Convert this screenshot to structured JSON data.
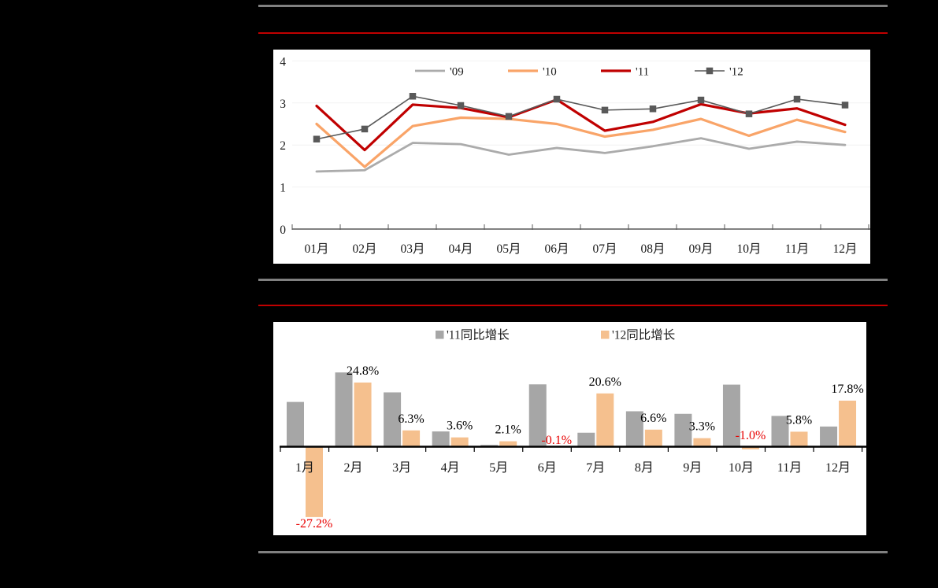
{
  "page": {
    "background": "#000000",
    "divider_gray_color": "#808080",
    "divider_red_color": "#C00000",
    "panel_background": "#FFFFFF",
    "axis_text_color": "#1A1A1A"
  },
  "chart_data": [
    {
      "type": "line",
      "title": "",
      "categories": [
        "01月",
        "02月",
        "03月",
        "04月",
        "05月",
        "06月",
        "07月",
        "08月",
        "09月",
        "10月",
        "11月",
        "12月"
      ],
      "series": [
        {
          "name": "'09",
          "color": "#ABABAB",
          "marker": "none",
          "values": [
            1.37,
            1.4,
            2.05,
            2.02,
            1.77,
            1.93,
            1.81,
            1.97,
            2.16,
            1.91,
            2.08,
            2.0
          ]
        },
        {
          "name": "'10",
          "color": "#F9A468",
          "marker": "none",
          "values": [
            2.5,
            1.48,
            2.45,
            2.65,
            2.62,
            2.5,
            2.2,
            2.36,
            2.62,
            2.22,
            2.6,
            2.31
          ]
        },
        {
          "name": "'11",
          "color": "#C00000",
          "marker": "none",
          "values": [
            2.93,
            1.88,
            2.96,
            2.88,
            2.66,
            3.08,
            2.34,
            2.55,
            2.97,
            2.75,
            2.87,
            2.48
          ]
        },
        {
          "name": "'12",
          "color": "#595959",
          "marker": "square",
          "values": [
            2.14,
            2.38,
            3.16,
            2.94,
            2.68,
            3.09,
            2.83,
            2.86,
            3.07,
            2.74,
            3.09,
            2.95
          ]
        }
      ],
      "ylim": [
        0,
        4
      ],
      "yticks": [
        "0",
        "1",
        "2",
        "3",
        "4"
      ],
      "grid": true,
      "gridline_color": "#F2F2F2",
      "axis_color": "#595959",
      "legend_position": "top"
    },
    {
      "type": "bar",
      "title": "",
      "categories": [
        "1月",
        "2月",
        "3月",
        "4月",
        "5月",
        "6月",
        "7月",
        "8月",
        "9月",
        "10月",
        "11月",
        "12月"
      ],
      "series": [
        {
          "name": "'11同比增长",
          "color": "#A6A6A6",
          "values": [
            17.3,
            28.7,
            21.0,
            5.9,
            0.7,
            24.1,
            5.4,
            13.7,
            12.7,
            24.0,
            11.9,
            7.8
          ]
        },
        {
          "name": "'12同比增长",
          "color": "#F5C08E",
          "values": [
            -27.2,
            24.8,
            6.3,
            3.6,
            2.1,
            -0.1,
            20.6,
            6.6,
            3.3,
            -1.0,
            5.8,
            17.8
          ],
          "labels": [
            "-27.2%",
            "24.8%",
            "6.3%",
            "3.6%",
            "2.1%",
            "-0.1%",
            "20.6%",
            "6.6%",
            "3.3%",
            "-1.0%",
            "5.8%",
            "17.8%"
          ]
        }
      ],
      "label_positive_color": "#000000",
      "label_negative_color": "#E80000",
      "axis_color": "#000000",
      "grid": false,
      "legend_position": "top"
    }
  ]
}
